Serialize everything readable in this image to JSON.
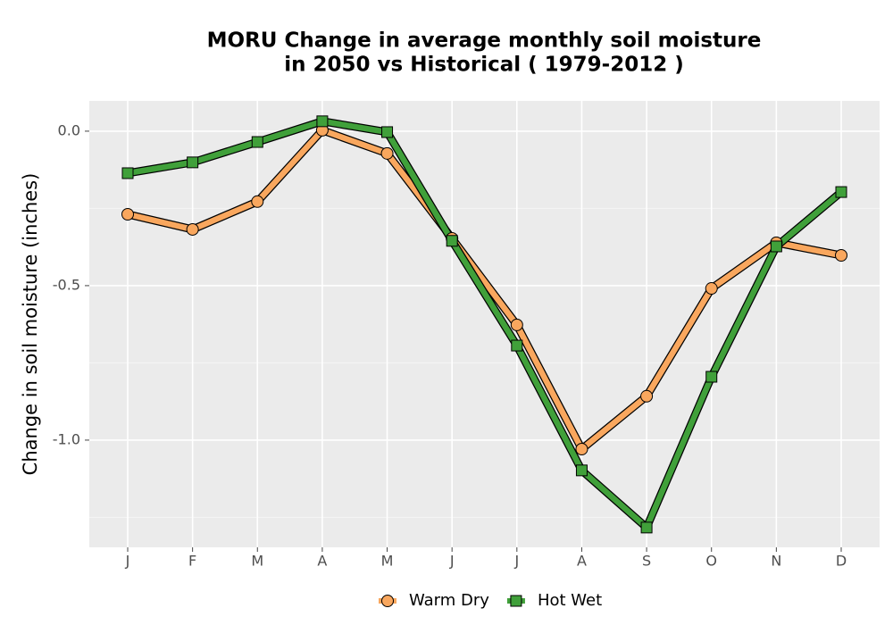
{
  "chart_data": {
    "type": "line",
    "title": [
      "MORU  Change in average monthly soil moisture",
      "in 2050 vs Historical ( 1979-2012 )"
    ],
    "y_label": "Change in soil moisture (inches)",
    "categories": [
      "J",
      "F",
      "M",
      "A",
      "M",
      "J",
      "J",
      "A",
      "S",
      "O",
      "N",
      "D"
    ],
    "series": [
      {
        "name": "Warm Dry",
        "color": "#f9a75e",
        "marker": "circle",
        "values": [
          -0.269,
          -0.318,
          -0.228,
          0.003,
          -0.072,
          -0.347,
          -0.627,
          -1.029,
          -0.858,
          -0.509,
          -0.361,
          -0.402
        ]
      },
      {
        "name": "Hot Wet",
        "color": "#40a03a",
        "marker": "square",
        "values": [
          -0.136,
          -0.101,
          -0.035,
          0.032,
          -0.003,
          -0.355,
          -0.694,
          -1.098,
          -1.283,
          -0.795,
          -0.373,
          -0.197
        ]
      }
    ],
    "ylim": [
      -1.347,
      0.098
    ],
    "yticks": [
      {
        "value": 0,
        "label": "0.0"
      },
      -0.5,
      {
        "value": -1,
        "label": "-1.0"
      }
    ],
    "yminor": [
      -0.25,
      -0.75,
      -1.25
    ],
    "grid": true,
    "legend": "bottom"
  }
}
